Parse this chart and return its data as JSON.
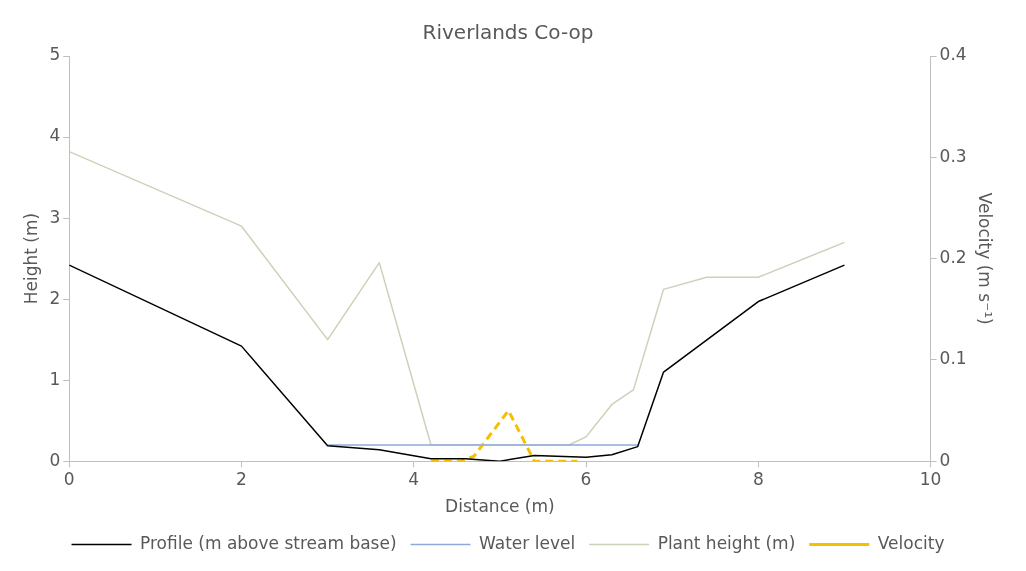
{
  "chart_data": {
    "type": "line",
    "title": "Riverlands Co-op",
    "xlabel": "Distance (m)",
    "ylabel": "Height (m)",
    "y2label": "Velocity (m s⁻¹)",
    "xlim": [
      0,
      10
    ],
    "xticks": [
      0,
      2,
      4,
      6,
      8,
      10
    ],
    "ylim": [
      0,
      5
    ],
    "yticks": [
      0,
      1,
      2,
      3,
      4,
      5
    ],
    "y2lim": [
      0,
      0.4
    ],
    "y2ticks": [
      0,
      0.1,
      0.2,
      0.3,
      0.4
    ],
    "grid": false,
    "legend": "bottom",
    "marker": "none",
    "series": [
      {
        "name": "Profile (m above stream base)",
        "color": "#000000",
        "x": [
          0,
          2,
          3,
          3.6,
          4.2,
          4.6,
          5,
          5.4,
          6,
          6.3,
          6.6,
          6.9,
          8,
          9
        ],
        "values": [
          2.42,
          1.42,
          0.19,
          0.14,
          0.03,
          0.03,
          0,
          0.07,
          0.05,
          0.08,
          0.18,
          1.1,
          1.97,
          2.42
        ]
      },
      {
        "name": "Water level",
        "color": "#8eaadb",
        "x": [
          3,
          6.6
        ],
        "values": [
          0.2,
          0.2
        ]
      },
      {
        "name": "Plant height (m)",
        "color": "#c8d3b8",
        "x": [
          0,
          2,
          3,
          3.6,
          4.2,
          5.8,
          6,
          6.3,
          6.55,
          6.9,
          7.4,
          8,
          9
        ],
        "values": [
          3.82,
          2.9,
          1.5,
          2.45,
          0.2,
          0.2,
          0.3,
          0.7,
          0.88,
          2.12,
          2.27,
          2.27,
          2.7
        ]
      },
      {
        "name": "Velocity",
        "color": "#f5c000",
        "axis": "y2",
        "line_style": "dashed",
        "x": [
          4.2,
          4.55,
          4.7,
          5.1,
          5.4,
          5.9
        ],
        "values": [
          0,
          0,
          0.005,
          0.05,
          0,
          0
        ]
      }
    ]
  }
}
